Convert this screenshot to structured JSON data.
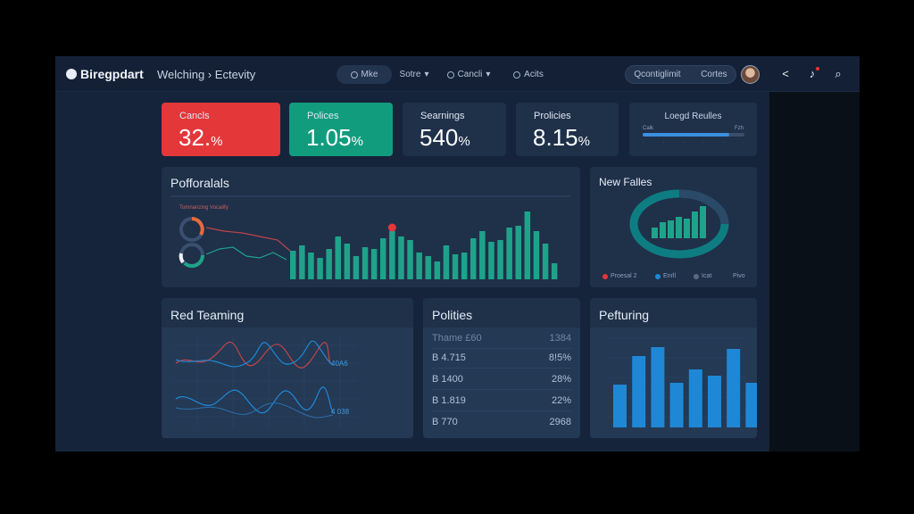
{
  "brand": {
    "name": "Biregpdart"
  },
  "breadcrumb": "Welching › Ectevity",
  "nav": {
    "pill1": "Mke",
    "pill2": "Sotre",
    "pill3": "Cancli",
    "pill4": "Acits"
  },
  "header_right": {
    "search_label": "Qcontiglimit",
    "cortes_label": "Cortes"
  },
  "kpis": [
    {
      "label": "Cancls",
      "value": "32.",
      "unit": "%"
    },
    {
      "label": "Polices",
      "value": "1.05",
      "unit": "%"
    },
    {
      "label": "Searnings",
      "value": "540",
      "unit": "%"
    },
    {
      "label": "Prolicies",
      "value": "8.15",
      "unit": "%"
    }
  ],
  "legend_card": {
    "title": "Loegd Reulles",
    "left_label": "Calk",
    "right_label": "Fzh",
    "progress": 0.85
  },
  "performance": {
    "title": "Pofforalals",
    "subtitle": "Tomnanzing Vocalify",
    "bars": [
      32,
      38,
      30,
      24,
      34,
      48,
      40,
      26,
      36,
      34,
      46,
      54,
      48,
      44,
      30,
      26,
      20,
      38,
      28,
      30,
      46,
      54,
      42,
      44,
      58,
      60,
      76,
      54,
      40,
      18
    ],
    "highlight_index": 11
  },
  "new_falles": {
    "title": "New Falles",
    "bars": [
      12,
      18,
      20,
      24,
      22,
      30,
      36
    ],
    "legend": [
      "Proesal 2",
      "Enrll",
      "Icat",
      "Pivo"
    ]
  },
  "red_teaming": {
    "title": "Red Teaming",
    "label1": "40A6",
    "label2": "4 038"
  },
  "polities": {
    "title": "Polities",
    "header": [
      "Thame £60",
      "1384"
    ],
    "rows": [
      [
        "B 4.715",
        "8!5%"
      ],
      [
        "B 1400",
        "28%"
      ],
      [
        "B 1.819",
        "22%"
      ],
      [
        "B 770",
        "2968"
      ]
    ]
  },
  "pefturing": {
    "title": "Pefturing",
    "bars": [
      48,
      80,
      90,
      50,
      65,
      58,
      88,
      50
    ],
    "y_ticks": [
      "",
      "",
      "",
      "",
      "",
      ""
    ],
    "x_ticks": [
      "",
      "",
      "",
      "",
      "",
      "",
      "",
      ""
    ]
  },
  "colors": {
    "red": "#e3373a",
    "green": "#129c7e",
    "teal": "#1ea38a",
    "blue": "#1e88d6"
  }
}
